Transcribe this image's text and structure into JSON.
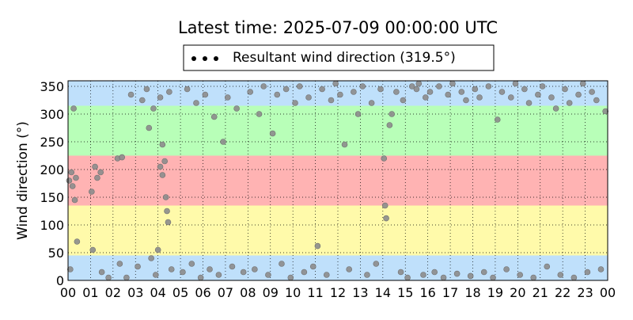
{
  "chart_data": {
    "type": "scatter",
    "title": "Latest time: 2025-07-09 00:00:00 UTC",
    "y_label": "Wind direction (°)",
    "legend": "upper center",
    "grid": true,
    "xlim": [
      0,
      24
    ],
    "ylim": [
      0,
      360
    ],
    "xticks": [
      {
        "value": 0,
        "label": "00"
      },
      {
        "value": 1,
        "label": "01"
      },
      {
        "value": 2,
        "label": "02"
      },
      {
        "value": 3,
        "label": "03"
      },
      {
        "value": 4,
        "label": "04"
      },
      {
        "value": 5,
        "label": "05"
      },
      {
        "value": 6,
        "label": "06"
      },
      {
        "value": 7,
        "label": "07"
      },
      {
        "value": 8,
        "label": "08"
      },
      {
        "value": 9,
        "label": "09"
      },
      {
        "value": 10,
        "label": "10"
      },
      {
        "value": 11,
        "label": "11"
      },
      {
        "value": 12,
        "label": "12"
      },
      {
        "value": 13,
        "label": "13"
      },
      {
        "value": 14,
        "label": "14"
      },
      {
        "value": 15,
        "label": "15"
      },
      {
        "value": 16,
        "label": "16"
      },
      {
        "value": 17,
        "label": "17"
      },
      {
        "value": 18,
        "label": "18"
      },
      {
        "value": 19,
        "label": "19"
      },
      {
        "value": 20,
        "label": "20"
      },
      {
        "value": 21,
        "label": "21"
      },
      {
        "value": 22,
        "label": "22"
      },
      {
        "value": 23,
        "label": "23"
      },
      {
        "value": 24,
        "label": "00"
      }
    ],
    "yticks": [
      0,
      50,
      100,
      150,
      200,
      250,
      300,
      350
    ],
    "bands": [
      {
        "from": 0,
        "to": 45,
        "color": "#bfe0fb"
      },
      {
        "from": 45,
        "to": 135,
        "color": "#fffaaa"
      },
      {
        "from": 135,
        "to": 225,
        "color": "#ffb3b3"
      },
      {
        "from": 225,
        "to": 315,
        "color": "#b8ffb8"
      },
      {
        "from": 315,
        "to": 360,
        "color": "#bfe0fb"
      }
    ],
    "series": [
      {
        "name": "Resultant wind direction (319.5°)",
        "color": "#8c8c8c",
        "x": [
          0.05,
          0.15,
          0.2,
          0.3,
          0.35,
          0.25,
          0.4,
          0.1,
          1.05,
          1.2,
          1.3,
          1.45,
          1.1,
          1.5,
          1.8,
          2.2,
          2.4,
          2.3,
          2.6,
          2.8,
          3.1,
          3.3,
          3.5,
          3.6,
          3.7,
          3.8,
          3.9,
          4.1,
          4.2,
          4.3,
          4.35,
          4.4,
          4.45,
          4.2,
          4.1,
          4.5,
          4.6,
          4.0,
          5.1,
          5.3,
          5.5,
          5.7,
          5.9,
          6.1,
          6.3,
          6.5,
          6.7,
          6.9,
          7.1,
          7.3,
          7.5,
          7.8,
          8.1,
          8.3,
          8.5,
          8.7,
          8.9,
          9.1,
          9.3,
          9.5,
          9.7,
          9.9,
          10.1,
          10.3,
          10.5,
          10.7,
          10.9,
          11.1,
          11.3,
          11.5,
          11.7,
          11.9,
          12.1,
          12.3,
          12.5,
          12.7,
          12.9,
          13.1,
          13.3,
          13.5,
          13.7,
          13.9,
          14.05,
          14.1,
          14.15,
          14.3,
          14.4,
          14.6,
          14.8,
          14.9,
          15.1,
          15.3,
          15.5,
          15.6,
          15.8,
          15.9,
          16.1,
          16.3,
          16.5,
          16.7,
          16.9,
          17.1,
          17.3,
          17.5,
          17.7,
          17.9,
          18.1,
          18.3,
          18.5,
          18.7,
          18.9,
          19.1,
          19.3,
          19.5,
          19.7,
          19.9,
          20.1,
          20.3,
          20.5,
          20.7,
          20.9,
          21.1,
          21.3,
          21.5,
          21.7,
          21.9,
          22.1,
          22.3,
          22.5,
          22.7,
          22.9,
          23.1,
          23.3,
          23.5,
          23.7,
          23.9
        ],
        "values": [
          180,
          195,
          170,
          145,
          185,
          310,
          70,
          20,
          160,
          205,
          185,
          195,
          55,
          15,
          5,
          220,
          222,
          30,
          5,
          335,
          25,
          325,
          345,
          275,
          40,
          310,
          10,
          205,
          190,
          215,
          150,
          125,
          105,
          245,
          330,
          340,
          20,
          55,
          15,
          345,
          30,
          320,
          5,
          335,
          20,
          295,
          10,
          250,
          330,
          25,
          310,
          15,
          340,
          20,
          300,
          350,
          10,
          265,
          335,
          30,
          345,
          5,
          320,
          350,
          15,
          330,
          25,
          62,
          345,
          10,
          325,
          355,
          335,
          245,
          20,
          340,
          300,
          350,
          10,
          320,
          30,
          345,
          220,
          135,
          112,
          280,
          300,
          340,
          15,
          325,
          5,
          350,
          345,
          355,
          10,
          330,
          340,
          15,
          350,
          5,
          335,
          355,
          12,
          340,
          325,
          8,
          345,
          330,
          15,
          350,
          5,
          290,
          340,
          20,
          330,
          355,
          10,
          345,
          320,
          5,
          335,
          350,
          25,
          330,
          310,
          10,
          345,
          320,
          5,
          335,
          355,
          15,
          340,
          325,
          20,
          305
        ]
      }
    ]
  }
}
